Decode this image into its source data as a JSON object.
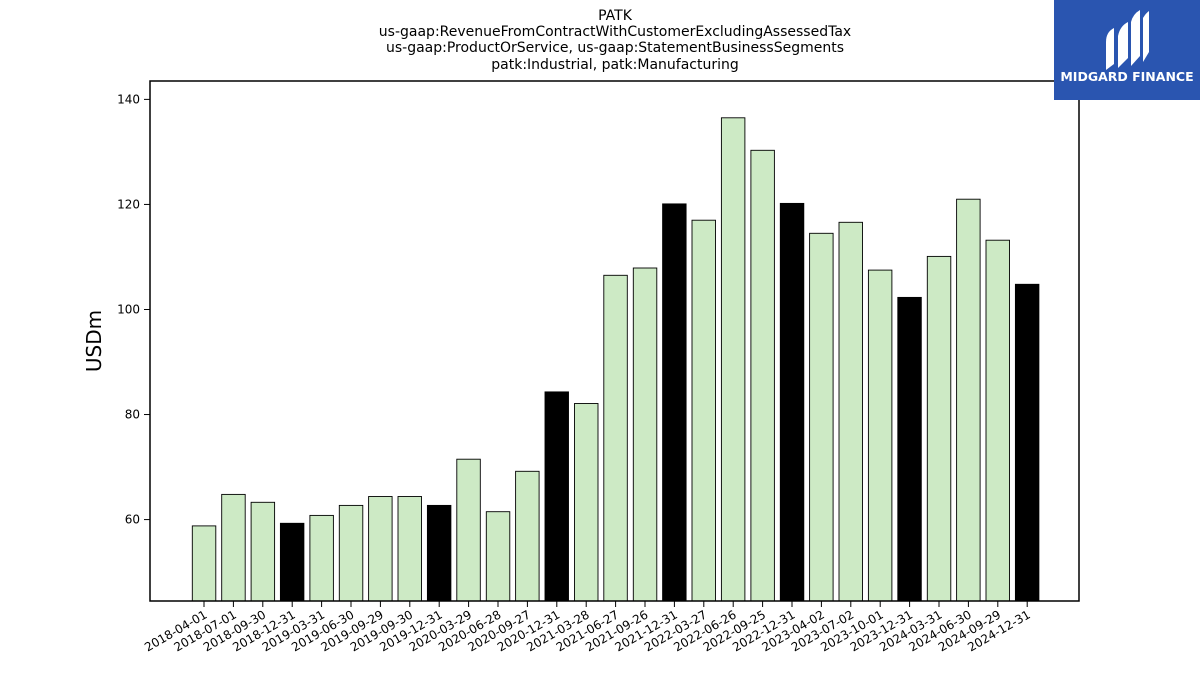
{
  "title_lines": [
    "PATK",
    "us-gaap:RevenueFromContractWithCustomerExcludingAssessedTax",
    "us-gaap:ProductOrService, us-gaap:StatementBusinessSegments",
    "patk:Industrial, patk:Manufacturing"
  ],
  "logo": {
    "text": "MIDGARD FINANCE",
    "bg_color": "#2a55b0",
    "icon": "midgard-logo-icon"
  },
  "colors": {
    "quarter_bar": "#cdeac5",
    "annual_bar": "#000000",
    "edge": "#000000"
  },
  "chart_data": {
    "type": "bar",
    "categories": [
      "2018-04-01",
      "2018-07-01",
      "2018-09-30",
      "2018-12-31",
      "2019-03-31",
      "2019-06-30",
      "2019-09-29",
      "2019-09-30",
      "2019-12-31",
      "2020-03-29",
      "2020-06-28",
      "2020-09-27",
      "2020-12-31",
      "2021-03-28",
      "2021-06-27",
      "2021-09-26",
      "2021-12-31",
      "2022-03-27",
      "2022-06-26",
      "2022-09-25",
      "2022-12-31",
      "2023-04-02",
      "2023-07-02",
      "2023-10-01",
      "2023-12-31",
      "2024-03-31",
      "2024-06-30",
      "2024-09-29",
      "2024-12-31"
    ],
    "values": [
      58.8,
      64.8,
      63.3,
      59.3,
      60.8,
      62.7,
      64.4,
      64.4,
      62.7,
      71.5,
      61.5,
      69.2,
      84.3,
      82.1,
      106.5,
      107.9,
      120.1,
      117.0,
      136.5,
      130.3,
      120.2,
      114.5,
      116.6,
      107.5,
      102.3,
      110.1,
      121.0,
      113.2,
      104.8
    ],
    "annual": [
      false,
      false,
      false,
      true,
      false,
      false,
      false,
      false,
      true,
      false,
      false,
      false,
      true,
      false,
      false,
      false,
      true,
      false,
      false,
      false,
      true,
      false,
      false,
      false,
      true,
      false,
      false,
      false,
      true
    ],
    "ylabel": "USDm",
    "xlabel": "",
    "ylim": [
      44.5,
      143.5
    ],
    "yticks": [
      60,
      80,
      100,
      120,
      140
    ],
    "grid": false
  }
}
